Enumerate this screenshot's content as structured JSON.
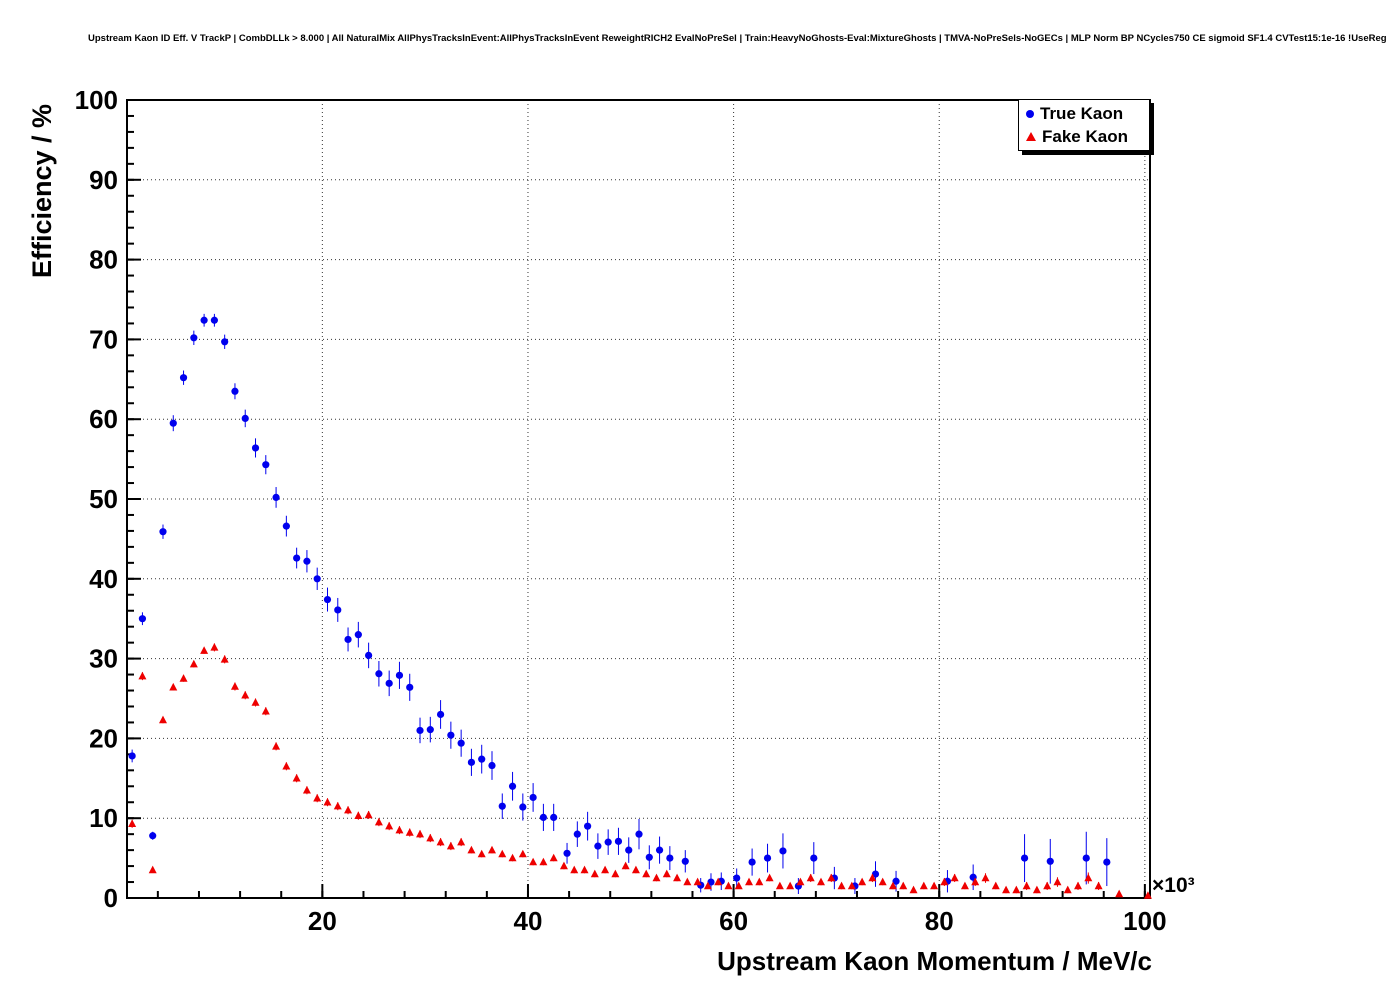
{
  "chart_data": {
    "type": "scatter",
    "title": "Upstream Kaon ID Eff. V TrackP | CombDLLk > 8.000 | All NaturalMix AllPhysTracksInEvent:AllPhysTracksInEvent ReweightRICH2 EvalNoPreSel | Train:HeavyNoGhosts-Eval:MixtureGhosts | TMVA-NoPreSels-NoGECs | MLP Norm BP NCycles750 CE sigmoid SF1.4 CVTest15:1e-16 !UseReg",
    "xlabel": "Upstream Kaon Momentum / MeV/c",
    "ylabel": "Efficiency / %",
    "x_multiplier_label": "×10³",
    "xlim": [
      1,
      100.5
    ],
    "ylim": [
      0,
      100
    ],
    "x_ticks": [
      20,
      40,
      60,
      80,
      100
    ],
    "y_ticks": [
      0,
      10,
      20,
      30,
      40,
      50,
      60,
      70,
      80,
      90,
      100
    ],
    "x_minor_step": 4,
    "y_minor_step": 2,
    "grid": true,
    "legend_position": "top-right",
    "series": [
      {
        "name": "True Kaon",
        "color": "#0000ee",
        "marker": "circle",
        "points": [
          [
            1.5,
            17.8,
            0.8
          ],
          [
            2.5,
            35.0,
            0.8
          ],
          [
            3.5,
            7.8,
            0.5
          ],
          [
            4.5,
            45.9,
            0.9
          ],
          [
            5.5,
            59.5,
            1.0
          ],
          [
            6.5,
            65.2,
            0.9
          ],
          [
            7.5,
            70.2,
            0.9
          ],
          [
            8.5,
            72.4,
            0.8
          ],
          [
            9.5,
            72.4,
            0.8
          ],
          [
            10.5,
            69.7,
            0.9
          ],
          [
            11.5,
            63.5,
            1.0
          ],
          [
            12.5,
            60.1,
            1.1
          ],
          [
            13.5,
            56.4,
            1.2
          ],
          [
            14.5,
            54.3,
            1.2
          ],
          [
            15.5,
            50.2,
            1.3
          ],
          [
            16.5,
            46.6,
            1.3
          ],
          [
            17.5,
            42.6,
            1.3
          ],
          [
            18.5,
            42.2,
            1.4
          ],
          [
            19.5,
            40.0,
            1.4
          ],
          [
            20.5,
            37.4,
            1.5
          ],
          [
            21.5,
            36.1,
            1.5
          ],
          [
            22.5,
            32.4,
            1.5
          ],
          [
            23.5,
            33.0,
            1.6
          ],
          [
            24.5,
            30.4,
            1.6
          ],
          [
            25.5,
            28.1,
            1.6
          ],
          [
            26.5,
            26.9,
            1.6
          ],
          [
            27.5,
            27.9,
            1.7
          ],
          [
            28.5,
            26.4,
            1.7
          ],
          [
            29.5,
            21.0,
            1.6
          ],
          [
            30.5,
            21.1,
            1.6
          ],
          [
            31.5,
            23.0,
            1.8
          ],
          [
            32.5,
            20.4,
            1.7
          ],
          [
            33.5,
            19.4,
            1.7
          ],
          [
            34.5,
            17.0,
            1.7
          ],
          [
            35.5,
            17.4,
            1.8
          ],
          [
            36.5,
            16.6,
            1.8
          ],
          [
            37.5,
            11.5,
            1.6
          ],
          [
            38.5,
            14.0,
            1.8
          ],
          [
            39.5,
            11.4,
            1.7
          ],
          [
            40.5,
            12.6,
            1.8
          ],
          [
            41.5,
            10.1,
            1.7
          ],
          [
            42.5,
            10.1,
            1.7
          ],
          [
            43.8,
            5.6,
            1.3
          ],
          [
            44.8,
            8.0,
            1.6
          ],
          [
            45.8,
            9.0,
            1.8
          ],
          [
            46.8,
            6.5,
            1.6
          ],
          [
            47.8,
            7.0,
            1.6
          ],
          [
            48.8,
            7.1,
            1.7
          ],
          [
            49.8,
            6.0,
            1.6
          ],
          [
            50.8,
            8.0,
            1.9
          ],
          [
            51.8,
            5.1,
            1.5
          ],
          [
            52.8,
            6.0,
            1.7
          ],
          [
            53.8,
            5.0,
            1.5
          ],
          [
            55.3,
            4.6,
            1.4
          ],
          [
            56.8,
            1.6,
            0.9
          ],
          [
            57.8,
            2.0,
            1.1
          ],
          [
            58.8,
            2.1,
            1.1
          ],
          [
            60.3,
            2.5,
            1.2
          ],
          [
            61.8,
            4.5,
            1.7
          ],
          [
            63.3,
            5.0,
            1.8
          ],
          [
            64.8,
            5.9,
            2.2
          ],
          [
            66.3,
            1.5,
            1.0
          ],
          [
            67.8,
            5.0,
            2.0
          ],
          [
            69.8,
            2.5,
            1.4
          ],
          [
            71.8,
            1.5,
            1.0
          ],
          [
            73.8,
            3.0,
            1.6
          ],
          [
            75.8,
            2.1,
            1.3
          ],
          [
            80.8,
            2.1,
            1.4
          ],
          [
            83.3,
            2.6,
            1.6
          ],
          [
            88.3,
            5.0,
            3.0
          ],
          [
            90.8,
            4.6,
            2.8
          ],
          [
            94.3,
            5.0,
            3.3
          ],
          [
            96.3,
            4.5,
            3.0
          ]
        ]
      },
      {
        "name": "Fake Kaon",
        "color": "#ee0000",
        "marker": "triangle",
        "points": [
          [
            1.5,
            9.3,
            0.5
          ],
          [
            2.5,
            27.8,
            0.5
          ],
          [
            3.5,
            3.5,
            0.2
          ],
          [
            4.5,
            22.3,
            0.4
          ],
          [
            5.5,
            26.4,
            0.4
          ],
          [
            6.5,
            27.5,
            0.4
          ],
          [
            7.5,
            29.3,
            0.4
          ],
          [
            8.5,
            31.0,
            0.4
          ],
          [
            9.5,
            31.4,
            0.5
          ],
          [
            10.5,
            29.9,
            0.5
          ],
          [
            11.5,
            26.5,
            0.5
          ],
          [
            12.5,
            25.4,
            0.5
          ],
          [
            13.5,
            24.5,
            0.5
          ],
          [
            14.5,
            23.4,
            0.5
          ],
          [
            15.5,
            19.0,
            0.5
          ],
          [
            16.5,
            16.5,
            0.5
          ],
          [
            17.5,
            15.0,
            0.5
          ],
          [
            18.5,
            13.5,
            0.5
          ],
          [
            19.5,
            12.5,
            0.5
          ],
          [
            20.5,
            12.0,
            0.5
          ],
          [
            21.5,
            11.5,
            0.5
          ],
          [
            22.5,
            11.0,
            0.5
          ],
          [
            23.5,
            10.3,
            0.5
          ],
          [
            24.5,
            10.4,
            0.5
          ],
          [
            25.5,
            9.5,
            0.5
          ],
          [
            26.5,
            9.0,
            0.5
          ],
          [
            27.5,
            8.5,
            0.5
          ],
          [
            28.5,
            8.2,
            0.5
          ],
          [
            29.5,
            8.0,
            0.5
          ],
          [
            30.5,
            7.5,
            0.5
          ],
          [
            31.5,
            7.0,
            0.5
          ],
          [
            32.5,
            6.5,
            0.5
          ],
          [
            33.5,
            7.0,
            0.5
          ],
          [
            34.5,
            6.0,
            0.4
          ],
          [
            35.5,
            5.5,
            0.4
          ],
          [
            36.5,
            6.0,
            0.4
          ],
          [
            37.5,
            5.5,
            0.4
          ],
          [
            38.5,
            5.0,
            0.4
          ],
          [
            39.5,
            5.5,
            0.4
          ],
          [
            40.5,
            4.5,
            0.4
          ],
          [
            41.5,
            4.5,
            0.4
          ],
          [
            42.5,
            5.0,
            0.4
          ],
          [
            43.5,
            4.0,
            0.4
          ],
          [
            44.5,
            3.5,
            0.4
          ],
          [
            45.5,
            3.5,
            0.4
          ],
          [
            46.5,
            3.0,
            0.4
          ],
          [
            47.5,
            3.5,
            0.4
          ],
          [
            48.5,
            3.0,
            0.4
          ],
          [
            49.5,
            4.0,
            0.4
          ],
          [
            50.5,
            3.5,
            0.4
          ],
          [
            51.5,
            3.0,
            0.4
          ],
          [
            52.5,
            2.5,
            0.4
          ],
          [
            53.5,
            3.0,
            0.4
          ],
          [
            54.5,
            2.5,
            0.4
          ],
          [
            55.5,
            2.0,
            0.3
          ],
          [
            56.5,
            2.0,
            0.3
          ],
          [
            57.5,
            1.5,
            0.3
          ],
          [
            58.5,
            2.0,
            0.4
          ],
          [
            59.5,
            1.5,
            0.3
          ],
          [
            60.5,
            1.5,
            0.3
          ],
          [
            61.5,
            2.0,
            0.4
          ],
          [
            62.5,
            2.0,
            0.4
          ],
          [
            63.5,
            2.5,
            0.4
          ],
          [
            64.5,
            1.5,
            0.3
          ],
          [
            65.5,
            1.5,
            0.3
          ],
          [
            66.5,
            2.0,
            0.4
          ],
          [
            67.5,
            2.5,
            0.5
          ],
          [
            68.5,
            2.0,
            0.4
          ],
          [
            69.5,
            2.5,
            0.5
          ],
          [
            70.5,
            1.5,
            0.4
          ],
          [
            71.5,
            1.5,
            0.4
          ],
          [
            72.5,
            2.0,
            0.4
          ],
          [
            73.5,
            2.5,
            0.5
          ],
          [
            74.5,
            2.0,
            0.4
          ],
          [
            75.5,
            1.5,
            0.4
          ],
          [
            76.5,
            1.5,
            0.4
          ],
          [
            77.5,
            1.0,
            0.3
          ],
          [
            78.5,
            1.5,
            0.4
          ],
          [
            79.5,
            1.5,
            0.4
          ],
          [
            80.5,
            2.0,
            0.5
          ],
          [
            81.5,
            2.5,
            0.5
          ],
          [
            82.5,
            1.5,
            0.4
          ],
          [
            83.5,
            2.0,
            0.5
          ],
          [
            84.5,
            2.5,
            0.6
          ],
          [
            85.5,
            1.5,
            0.4
          ],
          [
            86.5,
            1.0,
            0.4
          ],
          [
            87.5,
            1.0,
            0.4
          ],
          [
            88.5,
            1.5,
            0.5
          ],
          [
            89.5,
            1.0,
            0.4
          ],
          [
            90.5,
            1.5,
            0.5
          ],
          [
            91.5,
            2.0,
            0.6
          ],
          [
            92.5,
            1.0,
            0.4
          ],
          [
            93.5,
            1.5,
            0.5
          ],
          [
            94.5,
            2.5,
            0.7
          ],
          [
            95.5,
            1.5,
            0.5
          ],
          [
            97.5,
            0.5,
            0.3
          ],
          [
            100.3,
            0.3,
            0.2
          ]
        ]
      }
    ]
  }
}
